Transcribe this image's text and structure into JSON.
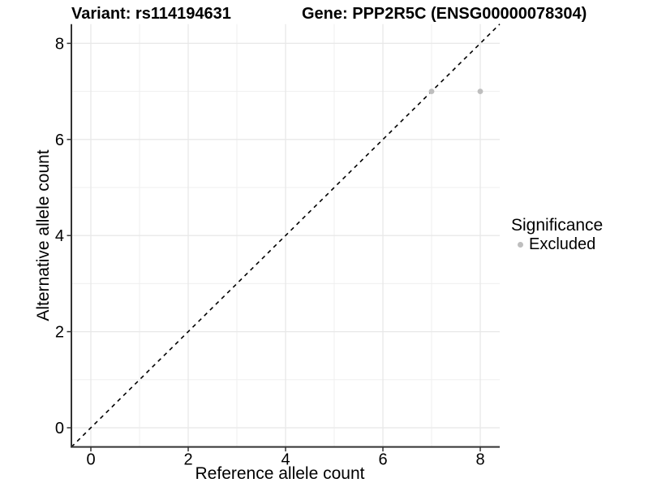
{
  "chart_data": {
    "type": "scatter",
    "title_left": "Variant: rs114194631",
    "title_right": "Gene: PPP2R5C (ENSG00000078304)",
    "xlabel": "Reference allele count",
    "ylabel": "Alternative allele count",
    "xlim": [
      -0.4,
      8.4
    ],
    "ylim": [
      -0.4,
      8.4
    ],
    "xticks": [
      0,
      2,
      4,
      6,
      8
    ],
    "yticks": [
      0,
      2,
      4,
      6,
      8
    ],
    "minor_grid_x": [
      1,
      3,
      5,
      7
    ],
    "minor_grid_y": [
      1,
      3,
      5,
      7
    ],
    "grid": true,
    "identity_line": {
      "style": "dashed",
      "from": [
        -0.4,
        -0.4
      ],
      "to": [
        8.4,
        8.4
      ],
      "color": "#000000"
    },
    "series": [
      {
        "name": "Excluded",
        "color": "#BEBEBE",
        "points": [
          {
            "x": 7,
            "y": 7
          },
          {
            "x": 8,
            "y": 7
          }
        ]
      }
    ],
    "legend": {
      "title": "Significance",
      "position": "right",
      "items": [
        {
          "label": "Excluded",
          "color": "#BEBEBE"
        }
      ]
    },
    "colors": {
      "background": "#FFFFFF",
      "grid_major": "#E8E8E8",
      "grid_minor": "#EFEFEF",
      "axis": "#333333",
      "tick": "#333333",
      "text": "#000000"
    }
  }
}
